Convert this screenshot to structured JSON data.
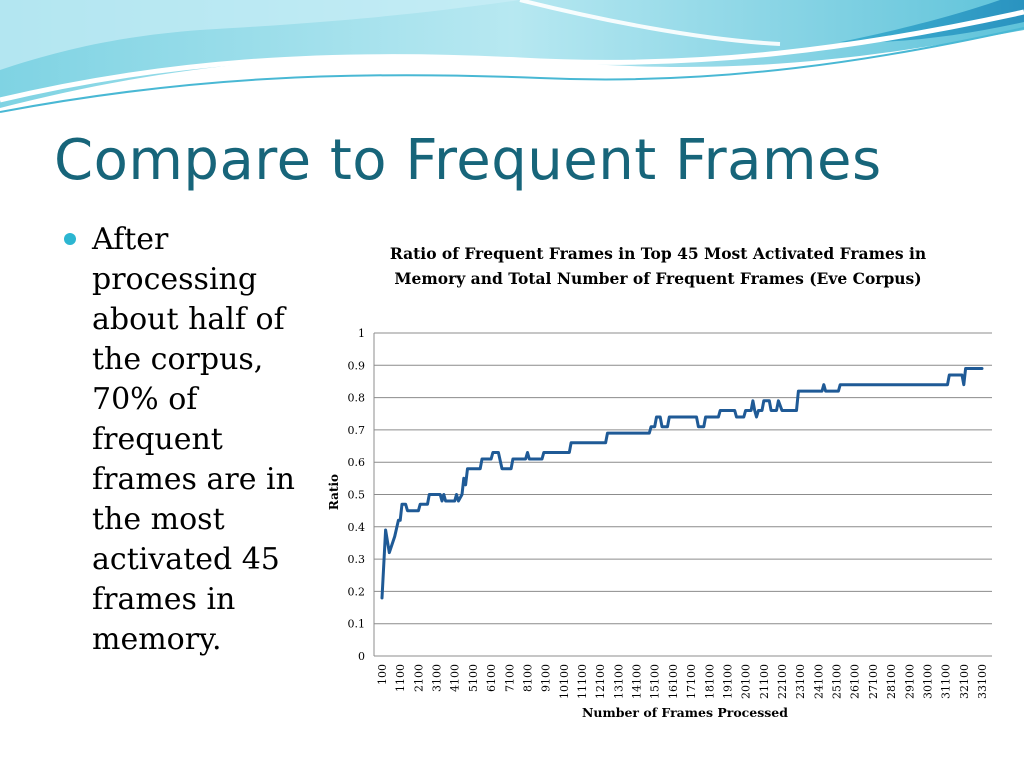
{
  "slide": {
    "title": "Compare to Frequent Frames",
    "bullet": "After processing about half of the corpus, 70% of frequent frames are in the most activated 45 frames in memory."
  },
  "colors": {
    "title": "#17657a",
    "bullet": "#2cb6d1",
    "series": "#1f5a96",
    "grid": "#8c8c8c"
  },
  "chart_data": {
    "type": "line",
    "title": "Ratio of Frequent Frames in Top 45 Most Activated Frames in Memory and Total Number of Frequent Frames (Eve Corpus)",
    "xlabel": "Number of Frames Processed",
    "ylabel": "Ratio",
    "ylim": [
      0,
      1
    ],
    "yticks": [
      "0",
      "0.1",
      "0.2",
      "0.3",
      "0.4",
      "0.5",
      "0.6",
      "0.7",
      "0.8",
      "0.9",
      "1"
    ],
    "xticks": [
      "100",
      "1100",
      "2100",
      "3100",
      "4100",
      "5100",
      "6100",
      "7100",
      "8100",
      "9100",
      "10100",
      "11100",
      "12100",
      "13100",
      "14100",
      "15100",
      "16100",
      "17100",
      "18100",
      "19100",
      "20100",
      "21100",
      "22100",
      "23100",
      "24100",
      "25100",
      "26100",
      "27100",
      "28100",
      "29100",
      "30100",
      "31100",
      "32100",
      "33100"
    ],
    "xlim": [
      100,
      33100
    ],
    "grid": true,
    "legend": "none",
    "series": [
      {
        "points": [
          [
            100,
            0.18
          ],
          [
            300,
            0.39
          ],
          [
            500,
            0.32
          ],
          [
            800,
            0.37
          ],
          [
            1000,
            0.42
          ],
          [
            1100,
            0.42
          ],
          [
            1200,
            0.47
          ],
          [
            1400,
            0.47
          ],
          [
            1500,
            0.45
          ],
          [
            2100,
            0.45
          ],
          [
            2200,
            0.47
          ],
          [
            2600,
            0.47
          ],
          [
            2700,
            0.5
          ],
          [
            3300,
            0.5
          ],
          [
            3400,
            0.48
          ],
          [
            3500,
            0.5
          ],
          [
            3600,
            0.48
          ],
          [
            4100,
            0.48
          ],
          [
            4200,
            0.5
          ],
          [
            4300,
            0.48
          ],
          [
            4500,
            0.5
          ],
          [
            4600,
            0.55
          ],
          [
            4700,
            0.53
          ],
          [
            4800,
            0.58
          ],
          [
            5500,
            0.58
          ],
          [
            5600,
            0.61
          ],
          [
            6100,
            0.61
          ],
          [
            6200,
            0.63
          ],
          [
            6500,
            0.63
          ],
          [
            6700,
            0.58
          ],
          [
            7200,
            0.58
          ],
          [
            7300,
            0.61
          ],
          [
            8000,
            0.61
          ],
          [
            8100,
            0.63
          ],
          [
            8200,
            0.61
          ],
          [
            8900,
            0.61
          ],
          [
            9000,
            0.63
          ],
          [
            10400,
            0.63
          ],
          [
            10500,
            0.66
          ],
          [
            12400,
            0.66
          ],
          [
            12500,
            0.69
          ],
          [
            14800,
            0.69
          ],
          [
            14900,
            0.71
          ],
          [
            15100,
            0.71
          ],
          [
            15200,
            0.74
          ],
          [
            15400,
            0.74
          ],
          [
            15500,
            0.71
          ],
          [
            15800,
            0.71
          ],
          [
            15900,
            0.74
          ],
          [
            17400,
            0.74
          ],
          [
            17500,
            0.71
          ],
          [
            17800,
            0.71
          ],
          [
            17900,
            0.74
          ],
          [
            18600,
            0.74
          ],
          [
            18700,
            0.76
          ],
          [
            19500,
            0.76
          ],
          [
            19600,
            0.74
          ],
          [
            20000,
            0.74
          ],
          [
            20100,
            0.76
          ],
          [
            20400,
            0.76
          ],
          [
            20500,
            0.79
          ],
          [
            20600,
            0.76
          ],
          [
            20700,
            0.74
          ],
          [
            20800,
            0.76
          ],
          [
            21000,
            0.76
          ],
          [
            21100,
            0.79
          ],
          [
            21400,
            0.79
          ],
          [
            21500,
            0.76
          ],
          [
            21800,
            0.76
          ],
          [
            21900,
            0.79
          ],
          [
            22100,
            0.76
          ],
          [
            22900,
            0.76
          ],
          [
            23000,
            0.82
          ],
          [
            24300,
            0.82
          ],
          [
            24400,
            0.84
          ],
          [
            24500,
            0.82
          ],
          [
            25200,
            0.82
          ],
          [
            25300,
            0.84
          ],
          [
            31200,
            0.84
          ],
          [
            31300,
            0.87
          ],
          [
            32000,
            0.87
          ],
          [
            32100,
            0.84
          ],
          [
            32200,
            0.89
          ],
          [
            33100,
            0.89
          ]
        ]
      }
    ]
  }
}
